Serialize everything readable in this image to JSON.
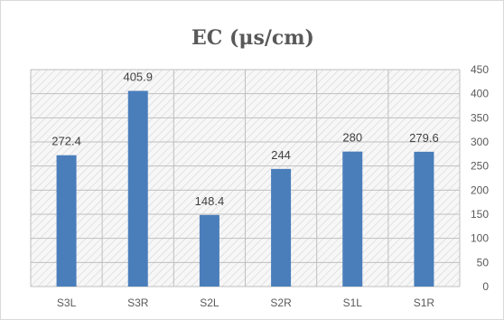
{
  "chart_data": {
    "type": "bar",
    "title": "EC  (μs/cm)",
    "categories": [
      "S3L",
      "S3R",
      "S2L",
      "S2R",
      "S1L",
      "S1R"
    ],
    "values": [
      272.4,
      405.9,
      148.4,
      244,
      280,
      279.6
    ],
    "value_labels": [
      "272.4",
      "405.9",
      "148.4",
      "244",
      "280",
      "279.6"
    ],
    "y_ticks": [
      "0",
      "50",
      "100",
      "150",
      "200",
      "250",
      "300",
      "350",
      "400",
      "450"
    ],
    "ylim": [
      0,
      450
    ],
    "y_axis_position": "right",
    "grid": true,
    "legend": "none",
    "colors": {
      "bar": "#4a7ebb",
      "plot_bg_hatch": "#d9d9d9",
      "gridline": "#bfbfbf",
      "text": "#595959"
    }
  }
}
